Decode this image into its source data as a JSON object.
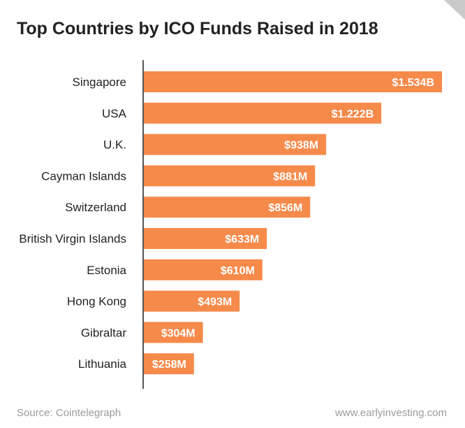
{
  "chart_data": {
    "type": "bar",
    "orientation": "horizontal",
    "title": "Top Countries by ICO Funds Raised in 2018",
    "xlabel": "",
    "ylabel": "",
    "unit": "USD millions",
    "categories": [
      "Singapore",
      "USA",
      "U.K.",
      "Cayman Islands",
      "Switzerland",
      "British Virgin Islands",
      "Estonia",
      "Hong Kong",
      "Gibraltar",
      "Lithuania"
    ],
    "values": [
      1534,
      1222,
      938,
      881,
      856,
      633,
      610,
      493,
      304,
      258
    ],
    "value_labels": [
      "$1.534B",
      "$1.222B",
      "$938M",
      "$881M",
      "$856M",
      "$633M",
      "$610M",
      "$493M",
      "$304M",
      "$258M"
    ],
    "xlim": [
      0,
      1534
    ],
    "grid": false,
    "legend": "none"
  },
  "colors": {
    "bar": "#f58a4b",
    "bar_label": "#ffffff",
    "axis": "#555555",
    "category_text": "#222222"
  },
  "footer": {
    "source": "Source: Cointelegraph",
    "site": "www.earlyinvesting.com"
  }
}
